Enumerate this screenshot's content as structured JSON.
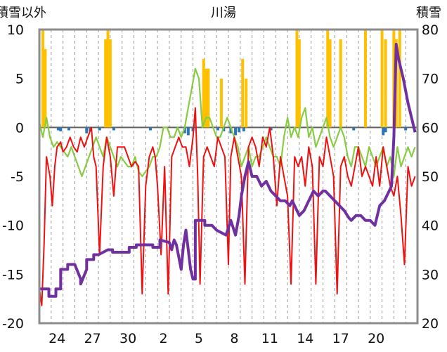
{
  "chart_data": {
    "type": "line",
    "title": "川湯",
    "left_axis_label": "積雪以外",
    "right_axis_label": "積雪",
    "left_ylim": [
      -20,
      10
    ],
    "left_yticks": [
      10,
      5,
      0,
      -5,
      -10,
      -15,
      -20
    ],
    "right_ylim": [
      20,
      80
    ],
    "right_yticks": [
      80,
      70,
      60,
      50,
      40,
      30,
      20
    ],
    "xlim": [
      0,
      32
    ],
    "x_ticks": [
      {
        "x": 1.5,
        "label": "24"
      },
      {
        "x": 4.5,
        "label": "27"
      },
      {
        "x": 7.5,
        "label": "30"
      },
      {
        "x": 10.5,
        "label": "2"
      },
      {
        "x": 13.5,
        "label": "5"
      },
      {
        "x": 16.5,
        "label": "8"
      },
      {
        "x": 19.5,
        "label": "11"
      },
      {
        "x": 22.5,
        "label": "14"
      },
      {
        "x": 25.5,
        "label": "17"
      },
      {
        "x": 28.5,
        "label": "20"
      }
    ],
    "grid": "vertical-dashed",
    "colors": {
      "temperature_line": "#ee1111",
      "green_line": "#88cc44",
      "snow_depth": "#7030a0",
      "precip_bars": "#ffc000",
      "blue_bars": "#2e75b6",
      "zero_line": "#606060",
      "frame": "#8c8c8c"
    },
    "series": [
      {
        "name": "temperature",
        "axis": "left",
        "x": [
          0,
          0.2,
          0.4,
          0.6,
          0.9,
          1.1,
          1.3,
          1.5,
          1.8,
          2,
          2.3,
          2.6,
          2.9,
          3.2,
          3.5,
          3.8,
          4.1,
          4.4,
          4.6,
          4.8,
          5.1,
          5.4,
          5.7,
          6,
          6.3,
          6.6,
          6.9,
          7.2,
          7.5,
          7.8,
          8.1,
          8.4,
          8.7,
          9,
          9.3,
          9.6,
          9.8,
          10,
          10.3,
          10.6,
          10.9,
          11.2,
          11.5,
          11.8,
          12.1,
          12.4,
          12.7,
          13,
          13.2,
          13.4,
          13.6,
          13.9,
          14.2,
          14.5,
          14.8,
          15.1,
          15.4,
          15.7,
          16,
          16.2,
          16.5,
          16.8,
          17.1,
          17.4,
          17.7,
          18,
          18.3,
          18.6,
          18.9,
          19.2,
          19.5,
          19.8,
          20.1,
          20.4,
          20.7,
          21,
          21.3,
          21.6,
          21.9,
          22.2,
          22.5,
          22.8,
          23.1,
          23.4,
          23.7,
          24,
          24.3,
          24.6,
          24.9,
          25.2,
          25.5,
          25.8,
          26.1,
          26.4,
          26.7,
          27,
          27.3,
          27.6,
          27.9,
          28.2,
          28.5,
          28.8,
          29.1,
          29.4,
          29.7,
          30,
          30.3,
          30.6,
          30.9,
          31.2,
          31.5,
          31.8
        ],
        "values": [
          -16.5,
          -18.2,
          -12,
          -3,
          -5,
          -8,
          -4,
          -2,
          -1.5,
          -2.5,
          -2,
          -1,
          -2,
          -2.5,
          -1,
          -2,
          -1,
          0,
          -3,
          -4,
          -13,
          -4,
          -1,
          -3,
          -7,
          -2,
          -2,
          -2,
          -3,
          -4,
          -3.5,
          -4,
          -17,
          -6,
          -3,
          -2,
          -3,
          -6,
          -13,
          -4,
          -17,
          -3,
          -2,
          -1,
          -2,
          -2,
          -4,
          -1,
          2,
          -5,
          -16,
          -3,
          -2,
          -3,
          -4,
          -1,
          -2,
          -3,
          -14,
          -3,
          -1,
          -3,
          -5,
          -16,
          -2,
          -1,
          -2,
          -4,
          -1,
          -2,
          0,
          -3,
          -8,
          -3,
          -5,
          -7,
          -16,
          -3,
          -4,
          -3,
          -6,
          -2,
          -4,
          -16,
          -3,
          -4,
          -1,
          -3,
          -5,
          -17,
          -4,
          -3,
          -5,
          -6,
          -4,
          -2,
          -5,
          -4,
          -5,
          -6,
          -3,
          -6,
          -2,
          -4,
          -6,
          -7,
          -5,
          -9,
          -14,
          -4,
          -6,
          -5
        ]
      },
      {
        "name": "green_series",
        "axis": "left",
        "x": [
          0,
          0.3,
          0.6,
          0.9,
          1.2,
          1.5,
          1.8,
          2.1,
          2.4,
          2.7,
          3,
          3.3,
          3.6,
          3.9,
          4.2,
          4.5,
          4.8,
          5.1,
          5.4,
          5.7,
          6,
          6.3,
          6.6,
          6.9,
          7.2,
          7.5,
          7.8,
          8.1,
          8.4,
          8.7,
          9,
          9.3,
          9.6,
          9.9,
          10.2,
          10.5,
          10.8,
          11.1,
          11.4,
          11.7,
          12,
          12.3,
          12.6,
          12.9,
          13.2,
          13.5,
          13.8,
          14.1,
          14.4,
          14.7,
          15,
          15.3,
          15.6,
          15.9,
          16.2,
          16.5,
          16.8,
          17.1,
          17.4,
          17.7,
          18,
          18.3,
          18.6,
          18.9,
          19.2,
          19.5,
          19.8,
          20.1,
          20.4,
          20.7,
          21,
          21.3,
          21.6,
          21.9,
          22.2,
          22.5,
          22.8,
          23.1,
          23.4,
          23.7,
          24,
          24.3,
          24.6,
          24.9,
          25.2,
          25.5,
          25.8,
          26.1,
          26.4,
          26.7,
          27,
          27.3,
          27.6,
          27.9,
          28.2,
          28.5,
          28.8,
          29.1,
          29.4,
          29.7,
          30,
          30.3,
          30.6,
          30.9,
          31.2,
          31.5,
          31.8
        ],
        "values": [
          0.5,
          -1,
          1,
          -1,
          -2,
          -1.5,
          -2,
          -2.5,
          -3,
          -2,
          -3,
          -4,
          -5,
          -4,
          -3,
          -2,
          -1,
          -2,
          -3,
          -1,
          -2,
          -3,
          -4,
          -3,
          -3.5,
          -4,
          -4,
          -3,
          -4.5,
          -5,
          -4.5,
          -4,
          -3,
          -3,
          -2,
          0,
          0,
          -1,
          -1,
          0,
          -1,
          0,
          2,
          4,
          6,
          5,
          0,
          1,
          1,
          0,
          -1,
          -1,
          0,
          1,
          0,
          -1,
          -2,
          -4,
          -3,
          -2,
          -4,
          -3,
          -3,
          -2,
          -1,
          -2,
          -3,
          -3,
          -4,
          -1,
          1,
          -1,
          0,
          -1,
          1,
          2,
          -1,
          0,
          -2,
          -1,
          0,
          1,
          -1,
          -2,
          -1,
          0,
          -1,
          -3,
          -4,
          -2,
          -2,
          -3,
          -4,
          -2,
          -3,
          -4,
          -3,
          -2,
          -4,
          -3,
          -5,
          -2,
          -4,
          -3,
          -2,
          -3,
          -2
        ]
      },
      {
        "name": "snow_depth",
        "axis": "right",
        "x": [
          0,
          0.8,
          0.8,
          1.4,
          1.4,
          1.8,
          1.8,
          2.4,
          2.4,
          3,
          3.5,
          3.5,
          4,
          4,
          4.6,
          4.6,
          5,
          5,
          5.8,
          5.8,
          6.2,
          6.2,
          7,
          7.6,
          7.6,
          8.2,
          8.2,
          8.8,
          8.8,
          9.6,
          9.6,
          10.2,
          10.2,
          11,
          11.2,
          11.4,
          11.6,
          12,
          12.2,
          12.4,
          12.8,
          13,
          13.2,
          13.2,
          14,
          14,
          14.6,
          15,
          15.4,
          15.8,
          16.2,
          16.6,
          16.9,
          17.1,
          17.4,
          17.7,
          18,
          18.4,
          18.8,
          19.2,
          19.6,
          20,
          20.4,
          20.8,
          21.2,
          21.4,
          21.8,
          22,
          22.4,
          22.8,
          23.2,
          23.6,
          24,
          24.2,
          24.6,
          25,
          25.4,
          25.8,
          26.2,
          26.4,
          26.8,
          27.2,
          27.6,
          28,
          28.4,
          28.8,
          29.2,
          29.6,
          29.8,
          30,
          30.2,
          30.4,
          30.8,
          31.2,
          31.8
        ],
        "values": [
          27,
          27,
          25.5,
          25.5,
          27,
          27,
          31,
          31,
          32,
          32,
          29,
          28,
          31,
          33,
          33,
          34,
          34,
          34,
          35,
          35,
          35,
          34.5,
          34.5,
          34.5,
          35.5,
          35.5,
          36,
          36,
          36,
          36,
          35.5,
          35.5,
          37,
          36.5,
          35,
          37,
          36,
          31,
          36,
          39,
          31,
          29,
          29,
          41,
          41,
          40,
          40,
          39,
          38.5,
          38,
          41,
          38,
          42,
          46,
          50,
          53,
          50,
          50,
          48,
          49,
          47,
          46,
          45,
          45,
          44,
          45,
          43,
          42,
          43,
          45,
          47,
          46,
          47,
          47,
          46,
          45,
          44,
          43,
          41.5,
          41,
          42,
          42,
          41,
          41,
          40,
          44,
          45,
          47,
          48,
          58,
          77,
          74,
          70,
          65,
          59
        ]
      }
    ],
    "bars": [
      {
        "name": "precipitation",
        "color": "#ffc000",
        "axis": "left",
        "x": [
          0.3,
          0.5,
          5.6,
          5.8,
          6.0,
          13.9,
          14.1,
          14.3,
          15.4,
          17.2,
          17.5,
          21.8,
          22.0,
          24.4,
          24.6,
          25.5,
          27.6,
          29.0,
          29.3,
          30.0,
          30.2,
          30.5
        ],
        "heights": [
          10,
          8,
          9,
          10,
          9,
          7,
          6,
          6,
          5,
          7,
          5,
          10,
          9,
          10,
          9,
          9,
          10,
          10,
          9,
          10,
          9,
          10
        ]
      },
      {
        "name": "negative_bars",
        "color": "#2e75b6",
        "axis": "left",
        "x": [
          1.6,
          1.8,
          2.5,
          4.0,
          4.3,
          5.1,
          6.3,
          9.4,
          12.3,
          12.6,
          13.0,
          15.1,
          15.6,
          16.2,
          16.6,
          16.9,
          17.3,
          19.6,
          26.6,
          29.1,
          29.3,
          31.0
        ],
        "heights": [
          -0.3,
          -0.4,
          -0.3,
          -0.6,
          -0.4,
          -0.3,
          -0.3,
          -0.3,
          -0.6,
          -0.8,
          -0.4,
          -0.3,
          -0.4,
          -0.6,
          -0.8,
          -0.5,
          -0.4,
          -0.3,
          -0.3,
          -0.8,
          -0.5,
          -0.3
        ]
      }
    ]
  }
}
